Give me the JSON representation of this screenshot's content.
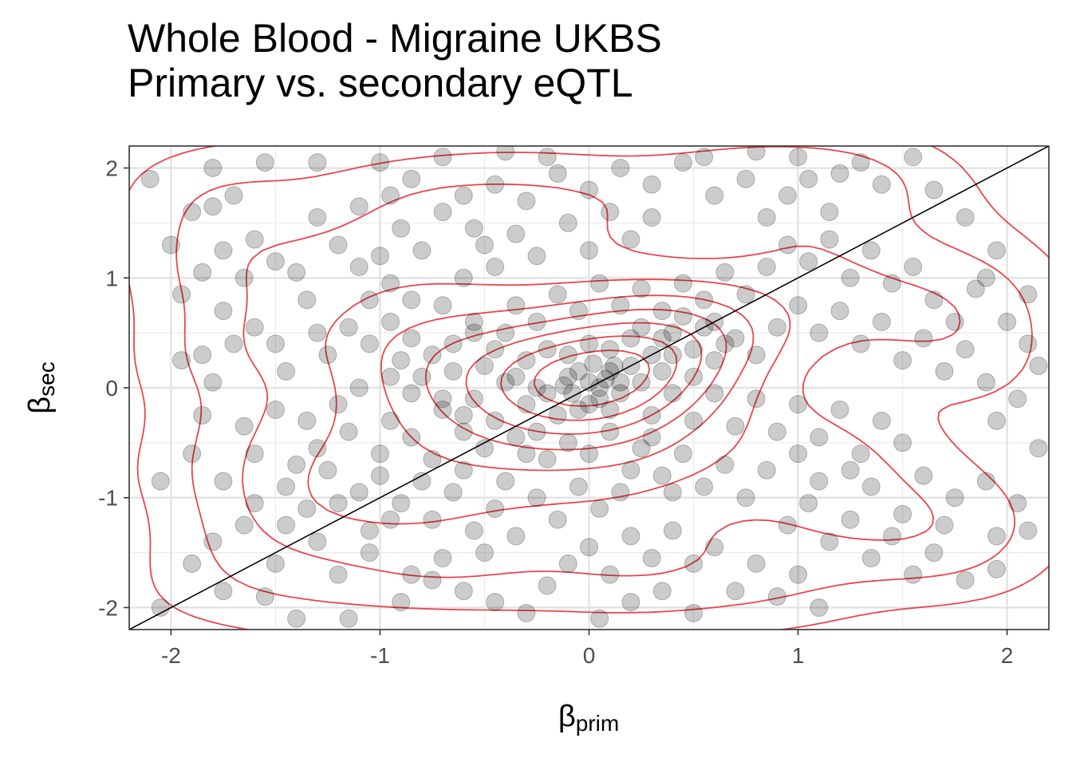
{
  "title_line1": "Whole Blood - Migraine UKBS",
  "title_line2": "Primary vs. secondary eQTL",
  "chart_data": {
    "type": "scatter",
    "title": "Whole Blood - Migraine UKBS\nPrimary vs. secondary eQTL",
    "xlabel": {
      "symbol": "β",
      "subscript": "prim"
    },
    "ylabel": {
      "symbol": "β",
      "subscript": "sec"
    },
    "xlim": [
      -2.2,
      2.2
    ],
    "ylim": [
      -2.2,
      2.2
    ],
    "xticks": [
      -2,
      -1,
      0,
      1,
      2
    ],
    "yticks": [
      -2,
      -1,
      0,
      1,
      2
    ],
    "xtick_labels": [
      "-2",
      "-1",
      "0",
      "1",
      "2"
    ],
    "ytick_labels": [
      "-2",
      "-1",
      "0",
      "1",
      "2"
    ],
    "grid": true,
    "reference_line": {
      "slope": 1,
      "intercept": 0,
      "color": "#000000"
    },
    "density_contours": {
      "color": "#e8464c",
      "levels": 9
    },
    "point_color": "#000000",
    "point_opacity": 0.2,
    "points": [
      [
        -2.1,
        1.9
      ],
      [
        -1.9,
        1.6
      ],
      [
        -1.8,
        2.0
      ],
      [
        -1.8,
        1.65
      ],
      [
        -1.7,
        1.75
      ],
      [
        -1.55,
        2.05
      ],
      [
        -1.3,
        2.05
      ],
      [
        -1.0,
        2.05
      ],
      [
        -0.95,
        1.75
      ],
      [
        -0.9,
        1.45
      ],
      [
        -1.95,
        0.85
      ],
      [
        -1.85,
        1.05
      ],
      [
        -1.75,
        0.7
      ],
      [
        -1.65,
        1.0
      ],
      [
        -1.5,
        1.15
      ],
      [
        -1.4,
        1.05
      ],
      [
        -1.35,
        0.8
      ],
      [
        -1.2,
        1.3
      ],
      [
        -1.1,
        1.1
      ],
      [
        -1.0,
        1.2
      ],
      [
        -1.95,
        0.25
      ],
      [
        -1.85,
        0.3
      ],
      [
        -1.8,
        0.05
      ],
      [
        -1.7,
        0.4
      ],
      [
        -1.6,
        0.55
      ],
      [
        -1.5,
        0.4
      ],
      [
        -1.45,
        0.15
      ],
      [
        -1.3,
        0.5
      ],
      [
        -1.25,
        0.3
      ],
      [
        -1.15,
        0.55
      ],
      [
        -1.05,
        0.4
      ],
      [
        -0.95,
        0.6
      ],
      [
        -0.9,
        0.25
      ],
      [
        -0.85,
        0.45
      ],
      [
        -0.8,
        0.1
      ],
      [
        -1.1,
        0.0
      ],
      [
        -1.2,
        -0.15
      ],
      [
        -1.35,
        -0.3
      ],
      [
        -1.5,
        -0.2
      ],
      [
        -1.65,
        -0.35
      ],
      [
        -1.85,
        -0.25
      ],
      [
        -1.9,
        -0.6
      ],
      [
        -1.75,
        -0.85
      ],
      [
        -1.6,
        -0.6
      ],
      [
        -1.45,
        -0.9
      ],
      [
        -1.35,
        -1.1
      ],
      [
        -1.25,
        -0.75
      ],
      [
        -1.1,
        -0.95
      ],
      [
        -1.0,
        -0.6
      ],
      [
        -0.95,
        -0.3
      ],
      [
        -2.05,
        -0.85
      ],
      [
        -1.8,
        -1.4
      ],
      [
        -1.65,
        -1.25
      ],
      [
        -1.5,
        -1.6
      ],
      [
        -1.3,
        -1.4
      ],
      [
        -1.2,
        -1.7
      ],
      [
        -1.05,
        -1.5
      ],
      [
        -0.95,
        -1.2
      ],
      [
        -0.85,
        -1.7
      ],
      [
        -0.7,
        -1.55
      ],
      [
        -2.05,
        -2.0
      ],
      [
        -1.9,
        -1.6
      ],
      [
        -1.75,
        -1.85
      ],
      [
        -1.55,
        -1.9
      ],
      [
        -1.4,
        -2.1
      ],
      [
        -1.15,
        -2.1
      ],
      [
        -0.9,
        -1.95
      ],
      [
        -0.75,
        -1.75
      ],
      [
        -0.6,
        -1.85
      ],
      [
        -0.5,
        -1.5
      ],
      [
        -0.75,
        -1.2
      ],
      [
        -0.65,
        -0.95
      ],
      [
        -0.55,
        -1.3
      ],
      [
        -0.45,
        -1.1
      ],
      [
        -0.35,
        -1.35
      ],
      [
        -0.25,
        -1.0
      ],
      [
        -0.15,
        -1.2
      ],
      [
        -0.05,
        -0.9
      ],
      [
        0.05,
        -1.1
      ],
      [
        0.15,
        -0.95
      ],
      [
        -0.85,
        -0.45
      ],
      [
        -0.75,
        -0.65
      ],
      [
        -0.7,
        -0.2
      ],
      [
        -0.6,
        -0.4
      ],
      [
        -0.55,
        -0.1
      ],
      [
        -0.5,
        -0.55
      ],
      [
        -0.45,
        -0.3
      ],
      [
        -0.4,
        0.05
      ],
      [
        -0.35,
        -0.45
      ],
      [
        -0.3,
        -0.15
      ],
      [
        -0.25,
        -0.4
      ],
      [
        -0.2,
        -0.05
      ],
      [
        -0.15,
        -0.25
      ],
      [
        -0.1,
        0.1
      ],
      [
        -0.05,
        -0.2
      ],
      [
        0.0,
        0.05
      ],
      [
        0.05,
        -0.1
      ],
      [
        0.1,
        0.15
      ],
      [
        0.15,
        -0.05
      ],
      [
        0.2,
        0.2
      ],
      [
        -0.3,
        0.25
      ],
      [
        -0.2,
        0.35
      ],
      [
        -0.1,
        0.3
      ],
      [
        0.0,
        0.4
      ],
      [
        0.1,
        0.35
      ],
      [
        0.2,
        0.45
      ],
      [
        0.3,
        0.3
      ],
      [
        0.4,
        0.5
      ],
      [
        0.5,
        0.35
      ],
      [
        0.6,
        0.6
      ],
      [
        -0.65,
        0.4
      ],
      [
        -0.55,
        0.6
      ],
      [
        -0.5,
        0.2
      ],
      [
        -0.4,
        0.5
      ],
      [
        -0.35,
        0.75
      ],
      [
        -0.25,
        0.6
      ],
      [
        -0.15,
        0.85
      ],
      [
        -0.05,
        0.7
      ],
      [
        0.05,
        0.95
      ],
      [
        0.15,
        0.75
      ],
      [
        0.25,
        0.9
      ],
      [
        0.35,
        0.7
      ],
      [
        0.45,
        0.95
      ],
      [
        0.55,
        0.8
      ],
      [
        0.65,
        1.05
      ],
      [
        0.75,
        0.85
      ],
      [
        0.85,
        1.1
      ],
      [
        0.7,
        0.45
      ],
      [
        0.8,
        0.3
      ],
      [
        0.9,
        0.55
      ],
      [
        -0.6,
        1.0
      ],
      [
        -0.5,
        1.3
      ],
      [
        -0.45,
        1.1
      ],
      [
        -0.35,
        1.4
      ],
      [
        -0.25,
        1.2
      ],
      [
        -0.1,
        1.5
      ],
      [
        0.0,
        1.25
      ],
      [
        0.1,
        1.6
      ],
      [
        0.2,
        1.35
      ],
      [
        0.3,
        1.55
      ],
      [
        -0.6,
        1.75
      ],
      [
        -0.45,
        1.85
      ],
      [
        -0.3,
        1.7
      ],
      [
        -0.15,
        1.95
      ],
      [
        0.0,
        1.8
      ],
      [
        0.15,
        2.0
      ],
      [
        0.3,
        1.85
      ],
      [
        0.45,
        2.05
      ],
      [
        0.6,
        1.75
      ],
      [
        0.75,
        1.9
      ],
      [
        0.85,
        1.55
      ],
      [
        0.95,
        1.75
      ],
      [
        1.05,
        1.9
      ],
      [
        1.15,
        1.6
      ],
      [
        1.3,
        2.05
      ],
      [
        1.4,
        1.85
      ],
      [
        1.55,
        2.1
      ],
      [
        1.65,
        1.8
      ],
      [
        1.8,
        1.55
      ],
      [
        1.95,
        1.25
      ],
      [
        0.95,
        1.3
      ],
      [
        1.05,
        1.15
      ],
      [
        1.15,
        1.35
      ],
      [
        1.25,
        1.0
      ],
      [
        1.35,
        1.25
      ],
      [
        1.45,
        0.95
      ],
      [
        1.55,
        1.1
      ],
      [
        1.65,
        0.8
      ],
      [
        1.75,
        0.6
      ],
      [
        1.85,
        0.9
      ],
      [
        1.0,
        0.75
      ],
      [
        1.1,
        0.5
      ],
      [
        1.2,
        0.7
      ],
      [
        1.3,
        0.4
      ],
      [
        1.4,
        0.6
      ],
      [
        1.5,
        0.25
      ],
      [
        1.6,
        0.45
      ],
      [
        1.7,
        0.15
      ],
      [
        1.8,
        0.35
      ],
      [
        1.9,
        0.05
      ],
      [
        2.0,
        0.6
      ],
      [
        2.1,
        0.4
      ],
      [
        2.15,
        0.2
      ],
      [
        2.05,
        -0.1
      ],
      [
        1.95,
        -0.3
      ],
      [
        2.15,
        -0.55
      ],
      [
        2.05,
        -1.05
      ],
      [
        1.9,
        -0.85
      ],
      [
        1.75,
        -1.0
      ],
      [
        1.6,
        -0.8
      ],
      [
        1.5,
        -0.5
      ],
      [
        1.4,
        -0.3
      ],
      [
        1.3,
        -0.6
      ],
      [
        1.2,
        -0.2
      ],
      [
        1.1,
        -0.45
      ],
      [
        1.0,
        -0.15
      ],
      [
        0.9,
        -0.4
      ],
      [
        0.8,
        -0.1
      ],
      [
        0.7,
        -0.35
      ],
      [
        0.6,
        -0.05
      ],
      [
        0.5,
        -0.3
      ],
      [
        0.4,
        -0.05
      ],
      [
        0.3,
        -0.25
      ],
      [
        0.45,
        -0.6
      ],
      [
        0.35,
        -0.8
      ],
      [
        0.25,
        -0.55
      ],
      [
        0.55,
        -0.9
      ],
      [
        0.65,
        -0.7
      ],
      [
        0.75,
        -1.0
      ],
      [
        0.85,
        -0.75
      ],
      [
        0.95,
        -1.25
      ],
      [
        1.05,
        -1.05
      ],
      [
        1.15,
        -1.4
      ],
      [
        1.25,
        -1.2
      ],
      [
        1.35,
        -1.55
      ],
      [
        1.45,
        -1.35
      ],
      [
        1.55,
        -1.7
      ],
      [
        1.65,
        -1.5
      ],
      [
        1.8,
        -1.75
      ],
      [
        1.95,
        -1.65
      ],
      [
        0.2,
        -1.35
      ],
      [
        0.3,
        -1.55
      ],
      [
        0.4,
        -1.3
      ],
      [
        0.5,
        -1.6
      ],
      [
        0.6,
        -1.45
      ],
      [
        0.7,
        -1.85
      ],
      [
        0.8,
        -1.6
      ],
      [
        0.9,
        -1.9
      ],
      [
        1.0,
        -1.7
      ],
      [
        1.1,
        -2.0
      ],
      [
        0.0,
        -1.45
      ],
      [
        0.1,
        -1.7
      ],
      [
        0.2,
        -1.95
      ],
      [
        0.35,
        -1.85
      ],
      [
        0.5,
        -2.05
      ],
      [
        -0.1,
        -1.6
      ],
      [
        -0.2,
        -1.8
      ],
      [
        -0.3,
        -2.05
      ],
      [
        -0.45,
        -1.95
      ],
      [
        0.05,
        -2.1
      ],
      [
        -0.6,
        -0.75
      ],
      [
        -0.4,
        -0.85
      ],
      [
        -0.2,
        -0.65
      ],
      [
        0.0,
        -0.6
      ],
      [
        0.2,
        -0.75
      ],
      [
        0.4,
        -0.95
      ],
      [
        0.1,
        -0.4
      ],
      [
        -0.1,
        -0.5
      ],
      [
        0.3,
        -0.45
      ],
      [
        -0.3,
        -0.6
      ],
      [
        0.05,
        0.0
      ],
      [
        0.1,
        -0.2
      ],
      [
        -0.05,
        0.15
      ],
      [
        0.15,
        0.05
      ],
      [
        0.0,
        -0.15
      ],
      [
        0.08,
        0.08
      ],
      [
        -0.08,
        -0.05
      ],
      [
        0.12,
        0.2
      ],
      [
        -0.12,
        0.02
      ],
      [
        0.02,
        0.22
      ],
      [
        0.25,
        0.05
      ],
      [
        0.35,
        0.15
      ],
      [
        0.4,
        0.3
      ],
      [
        0.5,
        0.1
      ],
      [
        0.6,
        0.25
      ],
      [
        0.65,
        0.4
      ],
      [
        0.55,
        0.55
      ],
      [
        0.45,
        0.65
      ],
      [
        0.35,
        0.45
      ],
      [
        0.25,
        0.55
      ],
      [
        -0.25,
        0.0
      ],
      [
        -0.35,
        0.1
      ],
      [
        -0.45,
        0.35
      ],
      [
        -0.55,
        0.5
      ],
      [
        -0.65,
        0.15
      ],
      [
        -0.75,
        0.3
      ],
      [
        -0.85,
        -0.05
      ],
      [
        -0.95,
        0.1
      ],
      [
        -0.7,
        -0.1
      ],
      [
        -0.6,
        -0.25
      ],
      [
        1.2,
        1.95
      ],
      [
        1.0,
        2.1
      ],
      [
        0.8,
        2.15
      ],
      [
        0.55,
        2.1
      ],
      [
        -0.2,
        2.1
      ],
      [
        -0.4,
        2.15
      ],
      [
        -0.7,
        2.1
      ],
      [
        -1.6,
        1.35
      ],
      [
        -1.75,
        1.25
      ],
      [
        -2.0,
        1.3
      ],
      [
        1.9,
        1.0
      ],
      [
        2.1,
        0.85
      ],
      [
        1.95,
        -1.35
      ],
      [
        2.1,
        -1.3
      ],
      [
        1.7,
        -1.25
      ],
      [
        1.5,
        -1.15
      ],
      [
        1.35,
        -0.9
      ],
      [
        1.25,
        -0.75
      ],
      [
        1.1,
        -0.85
      ],
      [
        1.0,
        -0.6
      ],
      [
        -1.6,
        -1.05
      ],
      [
        -1.45,
        -1.25
      ],
      [
        -1.3,
        -0.55
      ],
      [
        -1.15,
        -0.4
      ],
      [
        -1.0,
        -0.8
      ],
      [
        -0.9,
        -1.05
      ],
      [
        -0.8,
        -0.85
      ],
      [
        -1.05,
        -1.3
      ],
      [
        -1.2,
        -1.05
      ],
      [
        -1.4,
        -0.7
      ],
      [
        -1.3,
        1.55
      ],
      [
        -1.1,
        1.65
      ],
      [
        -0.85,
        1.9
      ],
      [
        -0.7,
        1.6
      ],
      [
        -0.55,
        1.45
      ],
      [
        -0.8,
        1.25
      ],
      [
        -0.95,
        0.95
      ],
      [
        -0.7,
        0.75
      ],
      [
        -0.85,
        0.8
      ],
      [
        -1.05,
        0.8
      ]
    ]
  }
}
